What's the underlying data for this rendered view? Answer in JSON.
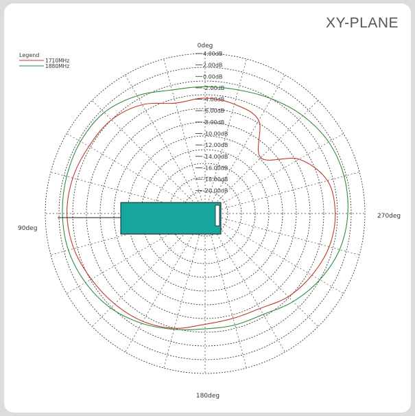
{
  "panel_title": "XY-PLANE",
  "chart_data": {
    "type": "polar",
    "angle_labels": {
      "top": "0deg",
      "left": "90deg",
      "right": "270deg",
      "bottom": "180deg"
    },
    "radial_unit": "dB",
    "radial_ticks": [
      4,
      2,
      0,
      -2,
      -4,
      -6,
      -8,
      -10,
      -12,
      -14,
      -16,
      -18,
      -20
    ],
    "radial_tick_labels": [
      "4.00dB",
      "2.00dB",
      "0.00dB",
      "-2.00dB",
      "-4.00dB",
      "-6.00dB",
      "-8.00dB",
      "-10.00dB",
      "-12.00dB",
      "-14.00dB",
      "-16.00dB",
      "-18.00dB",
      "-20.00dB"
    ],
    "rlim": [
      -24,
      4
    ],
    "grid": true,
    "legend": {
      "title": "Legend",
      "placement": "top-left"
    },
    "series": [
      {
        "name": "1710MHz",
        "color": "#c0392b",
        "angles_deg": [
          0,
          15,
          30,
          45,
          60,
          75,
          90,
          105,
          120,
          135,
          150,
          165,
          180,
          195,
          210,
          225,
          240,
          255,
          270,
          285,
          300,
          315,
          330,
          345
        ],
        "gain_db": [
          -3.8,
          -4.0,
          -2.0,
          -0.8,
          -0.5,
          0.0,
          0.2,
          -0.2,
          -1.0,
          -1.6,
          -2.2,
          -3.2,
          -4.6,
          -5.0,
          -4.8,
          -3.4,
          -2.4,
          -1.5,
          -1.2,
          -1.8,
          -5.0,
          -10.2,
          -5.2,
          -4.2
        ]
      },
      {
        "name": "1880MHz",
        "color": "#2e8b3a",
        "angles_deg": [
          0,
          15,
          30,
          45,
          60,
          75,
          90,
          105,
          120,
          135,
          150,
          165,
          180,
          195,
          210,
          225,
          240,
          255,
          270,
          285,
          300,
          315,
          330,
          345
        ],
        "gain_db": [
          -1.8,
          -1.6,
          -0.2,
          1.0,
          1.2,
          1.1,
          1.0,
          0.8,
          0.2,
          -0.6,
          -1.8,
          -3.0,
          -3.8,
          -3.8,
          -3.6,
          -2.2,
          -0.8,
          0.4,
          1.0,
          1.2,
          1.0,
          0.2,
          -0.8,
          -1.6
        ]
      }
    ]
  },
  "device": {
    "fill_color": "#17a7a0",
    "stroke_color": "#1a1a1a"
  }
}
